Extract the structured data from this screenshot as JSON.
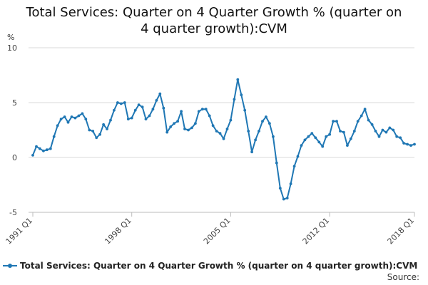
{
  "chart_data": {
    "type": "line",
    "title_line1": "Total Services: Quarter on 4 Quarter Growth % (quarter on",
    "title_line2": "4 quarter growth):CVM",
    "ylabel": "%",
    "ylim": [
      -5,
      10
    ],
    "yticks": [
      {
        "value": 10,
        "label": "10"
      },
      {
        "value": 5,
        "label": "5"
      },
      {
        "value": 0,
        "label": "0"
      },
      {
        "value": -5,
        "label": "-5"
      }
    ],
    "xticks": [
      {
        "index": 0,
        "label": "1991 Q1"
      },
      {
        "index": 28,
        "label": "1998 Q1"
      },
      {
        "index": 56,
        "label": "2005 Q1"
      },
      {
        "index": 84,
        "label": "2012 Q1"
      },
      {
        "index": 108,
        "label": "2018 Q1"
      }
    ],
    "grid": "horizontal",
    "legend_position": "bottom",
    "color": "#1f77b4",
    "series": [
      {
        "name": "Total Services: Quarter on 4 Quarter Growth % (quarter on 4 quarter growth):CVM",
        "values": [
          0.2,
          1.0,
          0.8,
          0.6,
          0.7,
          0.8,
          1.9,
          2.9,
          3.5,
          3.7,
          3.2,
          3.7,
          3.6,
          3.8,
          4.0,
          3.5,
          2.5,
          2.4,
          1.8,
          2.1,
          3.0,
          2.6,
          3.4,
          4.3,
          5.0,
          4.9,
          5.0,
          3.5,
          3.6,
          4.3,
          4.8,
          4.6,
          3.5,
          3.8,
          4.4,
          5.2,
          5.8,
          4.5,
          2.3,
          2.8,
          3.1,
          3.3,
          4.2,
          2.6,
          2.5,
          2.7,
          3.1,
          4.2,
          4.4,
          4.4,
          3.8,
          2.9,
          2.4,
          2.2,
          1.7,
          2.6,
          3.4,
          5.3,
          7.1,
          5.7,
          4.3,
          2.4,
          0.5,
          1.6,
          2.4,
          3.3,
          3.7,
          3.1,
          1.9,
          -0.5,
          -2.8,
          -3.8,
          -3.7,
          -2.4,
          -0.8,
          0.1,
          1.1,
          1.6,
          1.9,
          2.2,
          1.8,
          1.4,
          1.0,
          1.9,
          2.1,
          3.3,
          3.3,
          2.4,
          2.3,
          1.1,
          1.7,
          2.4,
          3.3,
          3.8,
          4.4,
          3.4,
          3.0,
          2.4,
          1.9,
          2.5,
          2.3,
          2.7,
          2.5,
          1.9,
          1.8,
          1.3,
          1.2,
          1.1,
          1.2
        ]
      }
    ]
  },
  "footer": {
    "source_label": "Source:"
  }
}
